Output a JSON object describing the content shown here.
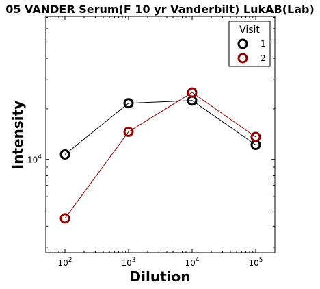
{
  "chart_data": {
    "type": "line",
    "title": "05 VANDER Serum(F 10 yr Vanderbilt) LukAB(Lab)",
    "xlabel": "Dilution",
    "ylabel": "Intensity",
    "x_scale": "log",
    "y_scale": "log",
    "xlim": [
      50,
      200000
    ],
    "ylim": [
      2780,
      71000
    ],
    "x_ticks": [
      {
        "value": 100,
        "base": "10",
        "exp": "2"
      },
      {
        "value": 1000,
        "base": "10",
        "exp": "3"
      },
      {
        "value": 10000,
        "base": "10",
        "exp": "4"
      },
      {
        "value": 100000,
        "base": "10",
        "exp": "5"
      }
    ],
    "y_ticks": [
      {
        "value": 10000,
        "base": "10",
        "exp": "4"
      }
    ],
    "grid": false,
    "legend": {
      "title": "Visit",
      "placement": "top-right"
    },
    "series": [
      {
        "name": "1",
        "color": "#000000",
        "x": [
          100,
          1000,
          10000,
          100000
        ],
        "y": [
          10700,
          21600,
          22400,
          12200
        ]
      },
      {
        "name": "2",
        "color": "#8b0000",
        "x": [
          100,
          1000,
          10000,
          100000
        ],
        "y": [
          4450,
          14600,
          25000,
          13600
        ]
      }
    ]
  }
}
